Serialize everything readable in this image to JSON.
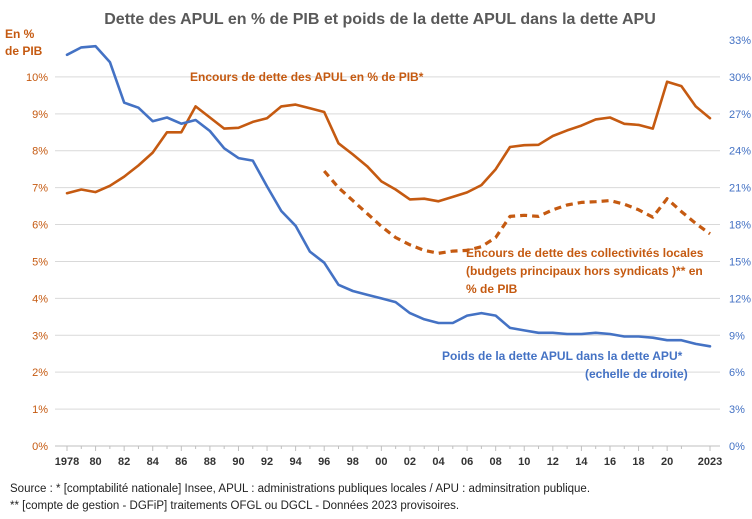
{
  "chart_data": {
    "type": "line",
    "title": "Dette des APUL en % de PIB et poids de la dette APUL dans la dette APU",
    "ylabel_left": "En %\nde PIB",
    "ylim_left": [
      0,
      11
    ],
    "yticks_left": [
      "0%",
      "1%",
      "2%",
      "3%",
      "4%",
      "5%",
      "6%",
      "7%",
      "8%",
      "9%",
      "10%"
    ],
    "ylim_right": [
      0,
      33
    ],
    "yticks_right": [
      "0%",
      "3%",
      "6%",
      "9%",
      "12%",
      "15%",
      "18%",
      "21%",
      "24%",
      "27%",
      "30%",
      "33%"
    ],
    "xlim": [
      1978,
      2023
    ],
    "xtick_labels": [
      {
        "x": 1978,
        "label": "1978"
      },
      {
        "x": 1980,
        "label": "80"
      },
      {
        "x": 1982,
        "label": "82"
      },
      {
        "x": 1984,
        "label": "84"
      },
      {
        "x": 1986,
        "label": "86"
      },
      {
        "x": 1988,
        "label": "88"
      },
      {
        "x": 1990,
        "label": "90"
      },
      {
        "x": 1992,
        "label": "92"
      },
      {
        "x": 1994,
        "label": "94"
      },
      {
        "x": 1996,
        "label": "96"
      },
      {
        "x": 1998,
        "label": "98"
      },
      {
        "x": 2000,
        "label": "00"
      },
      {
        "x": 2002,
        "label": "02"
      },
      {
        "x": 2004,
        "label": "04"
      },
      {
        "x": 2006,
        "label": "06"
      },
      {
        "x": 2008,
        "label": "08"
      },
      {
        "x": 2010,
        "label": "10"
      },
      {
        "x": 2012,
        "label": "12"
      },
      {
        "x": 2014,
        "label": "14"
      },
      {
        "x": 2016,
        "label": "16"
      },
      {
        "x": 2018,
        "label": "18"
      },
      {
        "x": 2020,
        "label": "20"
      },
      {
        "x": 2023,
        "label": "2023"
      }
    ],
    "grid": true,
    "series": [
      {
        "name": "Encours de dette des APUL en % de PIB*",
        "axis": "left",
        "color": "#c55a11",
        "style": "solid",
        "x": [
          1978,
          1979,
          1980,
          1981,
          1982,
          1983,
          1984,
          1985,
          1986,
          1987,
          1988,
          1989,
          1990,
          1991,
          1992,
          1993,
          1994,
          1995,
          1996,
          1997,
          1998,
          1999,
          2000,
          2001,
          2002,
          2003,
          2004,
          2005,
          2006,
          2007,
          2008,
          2009,
          2010,
          2011,
          2012,
          2013,
          2014,
          2015,
          2016,
          2017,
          2018,
          2019,
          2020,
          2021,
          2022,
          2023
        ],
        "values": [
          6.85,
          6.95,
          6.88,
          7.05,
          7.3,
          7.6,
          7.95,
          8.5,
          8.5,
          9.2,
          8.9,
          8.6,
          8.62,
          8.78,
          8.88,
          9.2,
          9.25,
          9.15,
          9.05,
          8.2,
          7.9,
          7.58,
          7.17,
          6.95,
          6.68,
          6.7,
          6.63,
          6.75,
          6.87,
          7.07,
          7.5,
          8.1,
          8.15,
          8.16,
          8.4,
          8.55,
          8.68,
          8.85,
          8.9,
          8.73,
          8.7,
          8.6,
          9.87,
          9.75,
          9.2,
          8.88
        ]
      },
      {
        "name": "Encours de dette des collectivités locales (budgets principaux hors syndicats )** en % de PIB",
        "axis": "left",
        "color": "#c55a11",
        "style": "dashed",
        "x": [
          1996,
          1997,
          1998,
          1999,
          2000,
          2001,
          2002,
          2003,
          2004,
          2005,
          2006,
          2007,
          2008,
          2009,
          2010,
          2011,
          2012,
          2013,
          2014,
          2015,
          2016,
          2017,
          2018,
          2019,
          2020,
          2021,
          2022,
          2023
        ],
        "values": [
          7.45,
          7.0,
          6.65,
          6.3,
          5.95,
          5.65,
          5.45,
          5.3,
          5.22,
          5.28,
          5.3,
          5.4,
          5.65,
          6.22,
          6.25,
          6.22,
          6.4,
          6.53,
          6.6,
          6.62,
          6.65,
          6.55,
          6.4,
          6.2,
          6.7,
          6.35,
          6.03,
          5.75
        ]
      },
      {
        "name": "Poids de la dette APUL dans la dette APU*",
        "axis": "right",
        "color": "#4472c4",
        "style": "solid",
        "x": [
          1978,
          1979,
          1980,
          1981,
          1982,
          1983,
          1984,
          1985,
          1986,
          1987,
          1988,
          1989,
          1990,
          1991,
          1992,
          1993,
          1994,
          1995,
          1996,
          1997,
          1998,
          1999,
          2000,
          2001,
          2002,
          2003,
          2004,
          2005,
          2006,
          2007,
          2008,
          2009,
          2010,
          2011,
          2012,
          2013,
          2014,
          2015,
          2016,
          2017,
          2018,
          2019,
          2020,
          2021,
          2022,
          2023
        ],
        "values": [
          31.8,
          32.4,
          32.5,
          31.2,
          27.9,
          27.5,
          26.4,
          26.7,
          26.2,
          26.5,
          25.6,
          24.2,
          23.4,
          23.2,
          21.1,
          19.1,
          17.9,
          15.8,
          14.9,
          13.1,
          12.6,
          12.3,
          12.0,
          11.7,
          10.8,
          10.3,
          10.0,
          10.0,
          10.6,
          10.8,
          10.6,
          9.6,
          9.4,
          9.2,
          9.2,
          9.1,
          9.1,
          9.2,
          9.1,
          8.9,
          8.9,
          8.8,
          8.6,
          8.6,
          8.3,
          8.1
        ]
      }
    ],
    "annotations": {
      "orange_solid": "Encours de dette des APUL en % de PIB*",
      "orange_dashed_lines": [
        "Encours de dette des collectivités locales",
        "(budgets principaux hors syndicats )** en",
        "% de PIB"
      ],
      "blue_lines": [
        "Poids de la dette APUL dans la dette APU*",
        "(echelle de droite)"
      ]
    }
  },
  "source": {
    "line1": "Source  : * [comptabilité nationale] Insee, APUL : administrations    publiques locales / APU : adminsitration publique.",
    "line2": "** [compte de gestion  - DGFiP] traitements OFGL ou DGCL  - Données 2023 provisoires."
  }
}
